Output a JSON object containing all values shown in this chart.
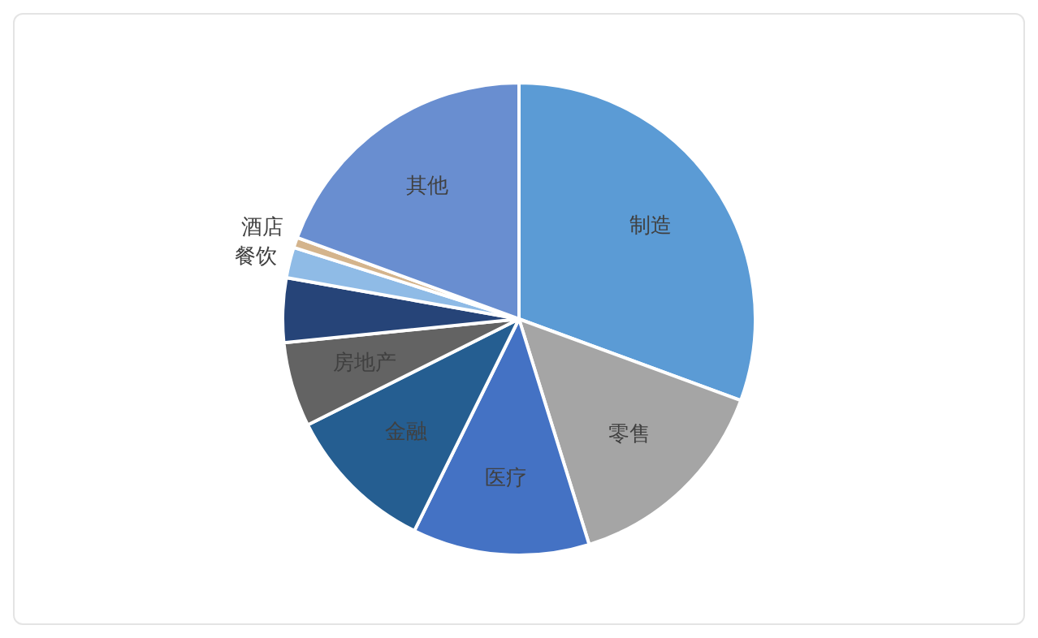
{
  "chart_data": {
    "type": "pie",
    "categories": [
      "制造",
      "零售",
      "医疗",
      "金融",
      "房地产",
      null,
      "餐饮",
      "酒店",
      "其他"
    ],
    "values": [
      30.6,
      14.6,
      12.1,
      10.3,
      5.8,
      4.4,
      2.1,
      0.7,
      19.4
    ],
    "colors": [
      "#5b9bd5",
      "#a5a5a5",
      "#4472c4",
      "#255e91",
      "#636363",
      "#264478",
      "#8fbbe6",
      "#d4b48c",
      "#698ed0"
    ],
    "legend": false
  }
}
